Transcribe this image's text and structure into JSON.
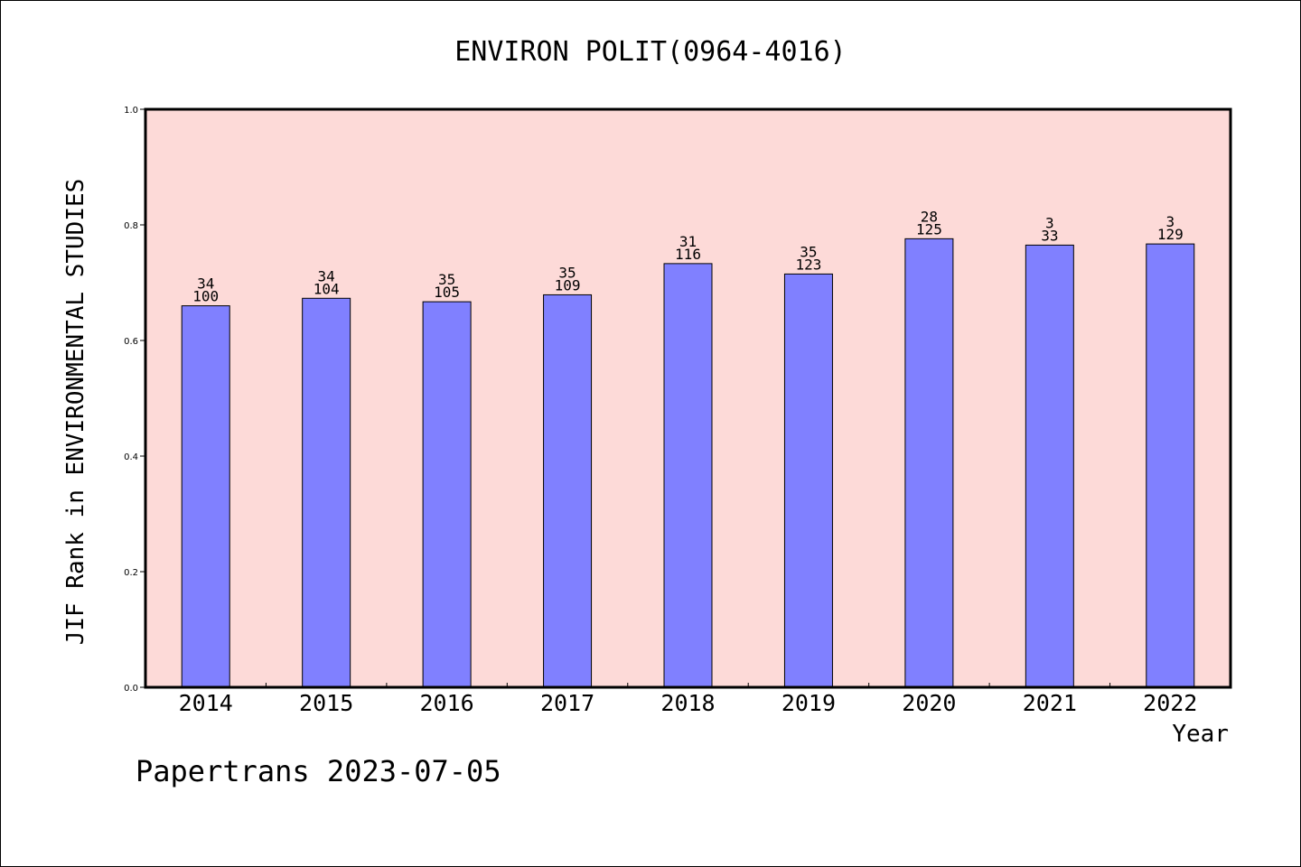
{
  "chart_data": {
    "type": "bar",
    "title": "ENVIRON POLIT(0964-4016)",
    "xlabel": "Year",
    "ylabel": "JIF Rank in ENVIRONMENTAL STUDIES",
    "categories": [
      "2014",
      "2015",
      "2016",
      "2017",
      "2018",
      "2019",
      "2020",
      "2021",
      "2022"
    ],
    "values": [
      0.66,
      0.673,
      0.667,
      0.679,
      0.733,
      0.715,
      0.776,
      0.765,
      0.767
    ],
    "rank": [
      "34",
      "34",
      "35",
      "35",
      "31",
      "35",
      "28",
      "3",
      "3"
    ],
    "total": [
      "100",
      "104",
      "105",
      "109",
      "116",
      "123",
      "125",
      "33",
      "129"
    ],
    "ylim": [
      0,
      1.0
    ],
    "yticks": [
      "0.0",
      "0.2",
      "0.4",
      "0.6",
      "0.8",
      "1.0"
    ],
    "grid": false,
    "colors": {
      "plot_background": "#fddad8",
      "bar_fill": "#8080ff",
      "bar_stroke": "#000000"
    }
  },
  "footer": {
    "credit": "Papertrans 2023-07-05"
  }
}
